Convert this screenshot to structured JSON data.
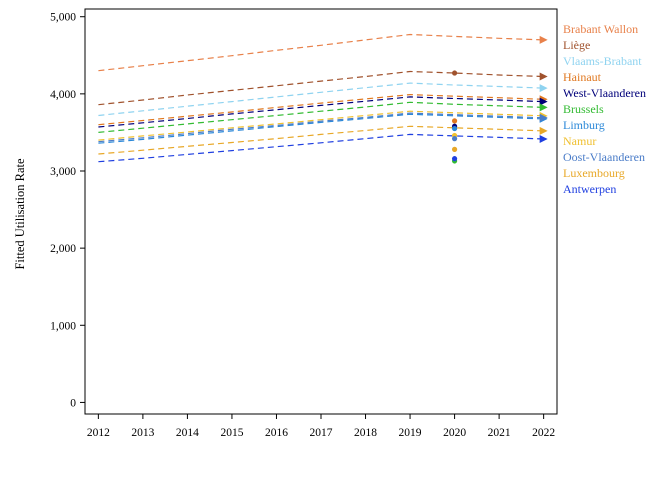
{
  "chart_data": {
    "type": "line",
    "title": "",
    "xlabel": "",
    "ylabel": "Fitted Utilisation Rate",
    "x": [
      2012,
      2013,
      2014,
      2015,
      2016,
      2017,
      2018,
      2019,
      2020,
      2021,
      2022
    ],
    "xticks": [
      "2012",
      "2013",
      "2014",
      "2015",
      "2016",
      "2017",
      "2018",
      "2019",
      "2020",
      "2021",
      "2022"
    ],
    "ylim": [
      -150,
      5100
    ],
    "yticks": [
      0,
      1000,
      2000,
      3000,
      4000,
      5000
    ],
    "ytick_labels": [
      "0",
      "1,000",
      "2,000",
      "3,000",
      "4,000",
      "5,000"
    ],
    "grid": false,
    "legend": "right, labels at line ends",
    "series": [
      {
        "name": "Brabant Wallon",
        "color": "#E8814A",
        "values": [
          4300,
          4365,
          4430,
          4495,
          4565,
          4630,
          4700,
          4770,
          4745,
          4720,
          4700
        ],
        "observed_2020": null
      },
      {
        "name": "Liège",
        "color": "#A0522D",
        "values": [
          3860,
          3920,
          3985,
          4045,
          4105,
          4165,
          4225,
          4290,
          4270,
          4245,
          4225
        ],
        "observed_2020": 4270
      },
      {
        "name": "Vlaams-Brabant",
        "color": "#8FD3F0",
        "values": [
          3720,
          3780,
          3840,
          3900,
          3960,
          4020,
          4080,
          4140,
          4115,
          4095,
          4075
        ],
        "observed_2020": null
      },
      {
        "name": "Hainaut",
        "color": "#E07820",
        "values": [
          3600,
          3655,
          3710,
          3765,
          3825,
          3880,
          3935,
          3990,
          3970,
          3950,
          3930
        ],
        "observed_2020": 3650
      },
      {
        "name": "West-Vlaanderen",
        "color": "#00007A",
        "values": [
          3570,
          3625,
          3680,
          3740,
          3795,
          3850,
          3905,
          3960,
          3940,
          3920,
          3900
        ],
        "observed_2020": 3580
      },
      {
        "name": "Brussels",
        "color": "#33BB33",
        "values": [
          3500,
          3555,
          3610,
          3665,
          3720,
          3775,
          3830,
          3890,
          3865,
          3845,
          3825
        ],
        "observed_2020": 3130
      },
      {
        "name": "Limburg",
        "color": "#2B88D8",
        "values": [
          3360,
          3410,
          3465,
          3520,
          3575,
          3630,
          3680,
          3735,
          3715,
          3695,
          3675
        ],
        "observed_2020": 3550
      },
      {
        "name": "Namur",
        "color": "#F0C030",
        "values": [
          3400,
          3455,
          3505,
          3560,
          3610,
          3665,
          3720,
          3775,
          3755,
          3735,
          3715
        ],
        "observed_2020": 3460
      },
      {
        "name": "Oost-Vlaanderen",
        "color": "#4A7CC8",
        "values": [
          3380,
          3430,
          3485,
          3540,
          3590,
          3645,
          3695,
          3750,
          3730,
          3710,
          3690
        ],
        "observed_2020": 3420
      },
      {
        "name": "Luxembourg",
        "color": "#E8A828",
        "values": [
          3220,
          3270,
          3320,
          3370,
          3420,
          3475,
          3525,
          3580,
          3560,
          3540,
          3520
        ],
        "observed_2020": 3280
      },
      {
        "name": "Antwerpen",
        "color": "#1F3FE0",
        "values": [
          3120,
          3165,
          3215,
          3265,
          3315,
          3365,
          3420,
          3475,
          3455,
          3435,
          3415
        ],
        "observed_2020": 3160
      }
    ]
  }
}
